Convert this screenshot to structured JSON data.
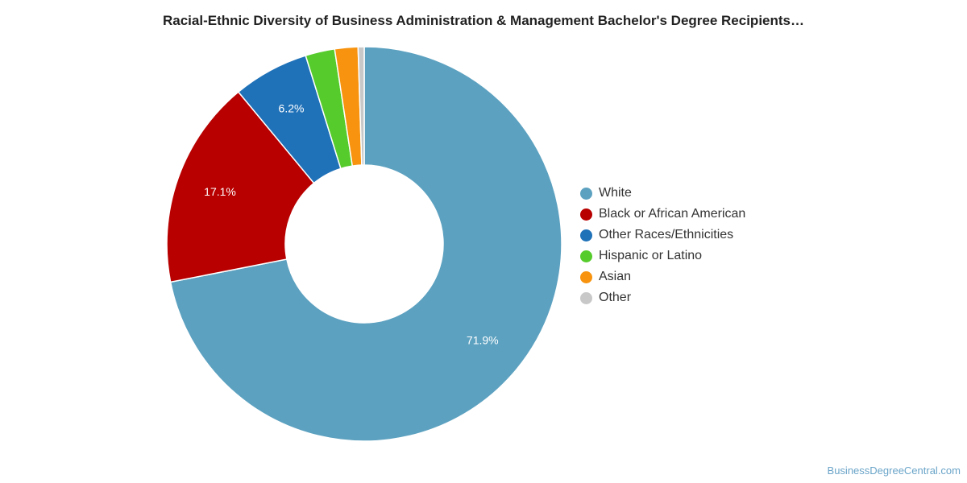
{
  "chart_data": {
    "type": "pie",
    "title": "Racial-Ethnic Diversity of Business Administration & Management Bachelor's Degree Recipients…",
    "donut": true,
    "legend_position": "right",
    "slices": [
      {
        "label": "White",
        "value": 71.9,
        "display": "71.9%",
        "color": "#5ca1c0"
      },
      {
        "label": "Black or African American",
        "value": 17.1,
        "display": "17.1%",
        "color": "#b80000"
      },
      {
        "label": "Other Races/Ethnicities",
        "value": 6.2,
        "display": "6.2%",
        "color": "#1f71b8"
      },
      {
        "label": "Hispanic or Latino",
        "value": 2.4,
        "display": "",
        "color": "#56cc2c"
      },
      {
        "label": "Asian",
        "value": 1.9,
        "display": "",
        "color": "#f7930e"
      },
      {
        "label": "Other",
        "value": 0.5,
        "display": "",
        "color": "#c8c8c8"
      }
    ]
  },
  "watermark": "BusinessDegreeCentral.com"
}
